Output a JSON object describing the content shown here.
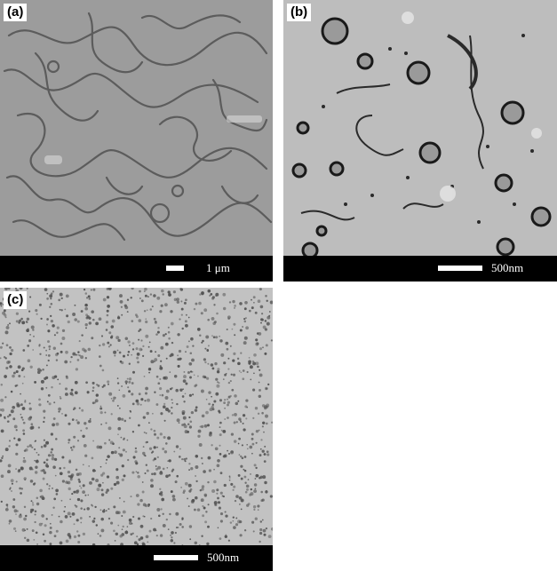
{
  "panels": [
    {
      "label": "(a)",
      "scale_text": "1 μm",
      "description": "labyrinthine stripe micrograph"
    },
    {
      "label": "(b)",
      "scale_text": "500nm",
      "description": "circular domains and worm-like features"
    },
    {
      "label": "(c)",
      "scale_text": "500nm",
      "description": "dense dot pattern"
    }
  ],
  "colors": {
    "scalebar_bg": "#000000",
    "scalebar_fg": "#ffffff",
    "label_bg": "#ffffff"
  }
}
